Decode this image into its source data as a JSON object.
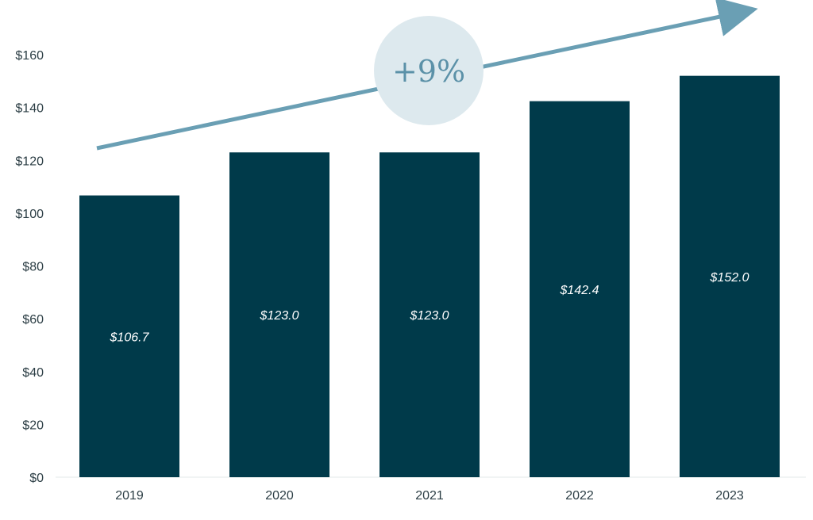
{
  "chart_data": {
    "type": "bar",
    "categories": [
      "2019",
      "2020",
      "2021",
      "2022",
      "2023"
    ],
    "values": [
      106.7,
      123.0,
      123.0,
      142.4,
      152.0
    ],
    "data_labels": [
      "$106.7",
      "$123.0",
      "$123.0",
      "$142.4",
      "$152.0"
    ],
    "y_ticks": [
      0,
      20,
      40,
      60,
      80,
      100,
      120,
      140,
      160
    ],
    "y_tick_labels": [
      "$0",
      "$20",
      "$40",
      "$60",
      "$80",
      "$100",
      "$120",
      "$140",
      "$160"
    ],
    "ylim": [
      0,
      160
    ],
    "grid": false,
    "annotation": {
      "text": "+9%",
      "shape": "trend-arrow-with-circle-badge"
    },
    "colors": {
      "bar": "#003a4a",
      "arrow": "#6a9fb4",
      "badge_fill": "#dde9ee",
      "badge_text": "#5b91a8",
      "axis_text": "#2c3e45"
    }
  }
}
